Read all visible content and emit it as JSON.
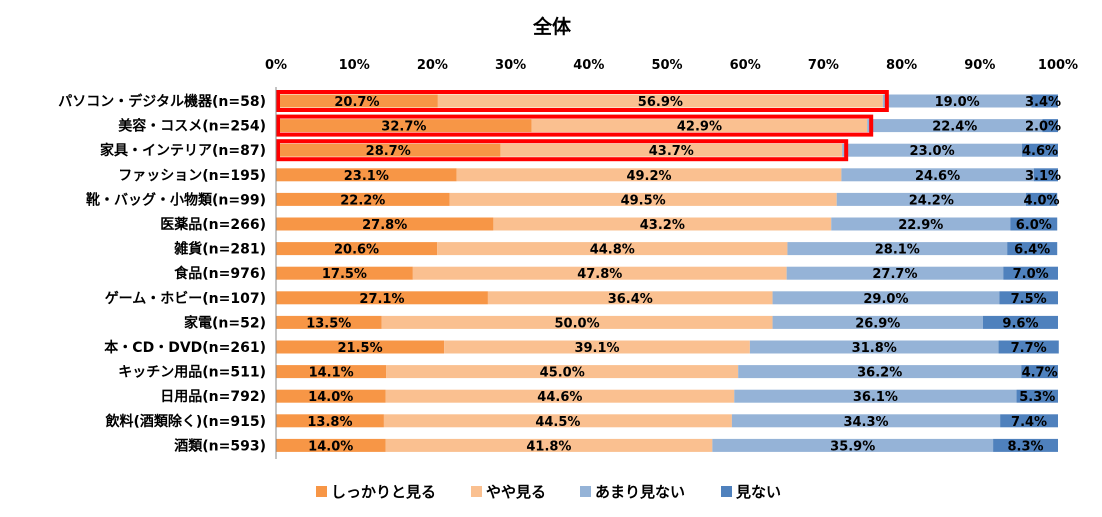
{
  "chart_data": {
    "type": "bar",
    "orientation": "horizontal",
    "stacked": true,
    "title": "全体",
    "xlim": [
      0,
      100
    ],
    "x_ticks": [
      "0%",
      "10%",
      "20%",
      "30%",
      "40%",
      "50%",
      "60%",
      "70%",
      "80%",
      "90%",
      "100%"
    ],
    "grid": false,
    "legend_position": "bottom",
    "categories": [
      "パソコン・デジタル機器(n=58)",
      "美容・コスメ(n=254)",
      "家具・インテリア(n=87)",
      "ファッション(n=195)",
      "靴・バッグ・小物類(n=99)",
      "医薬品(n=266)",
      "雑貨(n=281)",
      "食品(n=976)",
      "ゲーム・ホビー(n=107)",
      "家電(n=52)",
      "本・CD・DVD(n=261)",
      "キッチン用品(n=511)",
      "日用品(n=792)",
      "飲料(酒類除く)(n=915)",
      "酒類(n=593)"
    ],
    "series": [
      {
        "name": "しっかりと見る",
        "color": "#f79646",
        "values": [
          20.7,
          32.7,
          28.7,
          23.1,
          22.2,
          27.8,
          20.6,
          17.5,
          27.1,
          13.5,
          21.5,
          14.1,
          14.0,
          13.8,
          14.0
        ]
      },
      {
        "name": "やや見る",
        "color": "#fac090",
        "values": [
          56.9,
          42.9,
          43.7,
          49.2,
          49.5,
          43.2,
          44.8,
          47.8,
          36.4,
          50.0,
          39.1,
          45.0,
          44.6,
          44.5,
          41.8
        ]
      },
      {
        "name": "あまり見ない",
        "color": "#95b3d7",
        "values": [
          19.0,
          22.4,
          23.0,
          24.6,
          24.2,
          22.9,
          28.1,
          27.7,
          29.0,
          26.9,
          31.8,
          36.2,
          36.1,
          34.3,
          35.9
        ]
      },
      {
        "name": "見ない",
        "color": "#4f81bd",
        "values": [
          3.4,
          2.0,
          4.6,
          3.1,
          4.0,
          6.0,
          6.4,
          7.0,
          7.5,
          9.6,
          7.7,
          4.7,
          5.3,
          7.4,
          8.3
        ]
      }
    ],
    "data_labels": [
      [
        "20.7%",
        "32.7%",
        "28.7%",
        "23.1%",
        "22.2%",
        "27.8%",
        "20.6%",
        "17.5%",
        "27.1%",
        "13.5%",
        "21.5%",
        "14.1%",
        "14.0%",
        "13.8%",
        "14.0%"
      ],
      [
        "56.9%",
        "42.9%",
        "43.7%",
        "49.2%",
        "49.5%",
        "43.2%",
        "44.8%",
        "47.8%",
        "36.4%",
        "50.0%",
        "39.1%",
        "45.0%",
        "44.6%",
        "44.5%",
        "41.8%"
      ],
      [
        "19.0%",
        "22.4%",
        "23.0%",
        "24.6%",
        "24.2%",
        "22.9%",
        "28.1%",
        "27.7%",
        "29.0%",
        "26.9%",
        "31.8%",
        "36.2%",
        "36.1%",
        "34.3%",
        "35.9%"
      ],
      [
        "3.4%",
        "2.0%",
        "4.6%",
        "3.1%",
        "4.0%",
        "6.0%",
        "6.4%",
        "7.0%",
        "7.5%",
        "9.6%",
        "7.7%",
        "4.7%",
        "5.3%",
        "7.4%",
        "8.3%"
      ]
    ],
    "highlighted_rows": [
      0,
      1,
      2
    ],
    "highlight_color": "#ff0000"
  }
}
